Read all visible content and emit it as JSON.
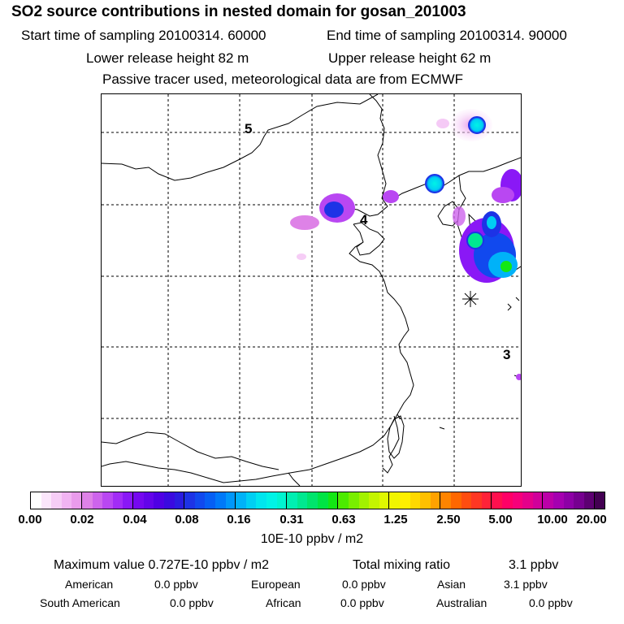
{
  "header": {
    "title": "SO2 source contributions in nested domain for gosan_201003",
    "start_time": "Start time of sampling 20100314. 60000",
    "end_time": "End time of sampling 20100314. 90000",
    "lower_height": "Lower release height   82 m",
    "upper_height": "Upper release height   62 m",
    "tracer_note": "Passive tracer used, meteorological data are from ECMWF"
  },
  "map": {
    "grid_labels": [
      "5",
      "4",
      "3"
    ],
    "receptor_marker": "asterisk"
  },
  "legend": {
    "ticks": [
      "0.00",
      "0.02",
      "0.04",
      "0.08",
      "0.16",
      "0.31",
      "0.63",
      "1.25",
      "2.50",
      "5.00",
      "10.00",
      "20.00"
    ],
    "units": "10E-10 ppbv / m2",
    "colors": [
      "#ffffff",
      "#fbe6fb",
      "#f6cdf6",
      "#f1b4f2",
      "#e99beb",
      "#de82e7",
      "#cd64ec",
      "#b947f2",
      "#a22cf6",
      "#8a18f6",
      "#7608f0",
      "#6304ea",
      "#4f00e4",
      "#3a0ae0",
      "#2a1ce0",
      "#1d33e6",
      "#1149ee",
      "#065ff4",
      "#0079f9",
      "#0097fa",
      "#00b2f8",
      "#00cff3",
      "#00e6ee",
      "#00f3e6",
      "#00f4d0",
      "#00efb2",
      "#00e890",
      "#00e46c",
      "#00e444",
      "#13e714",
      "#4ceb00",
      "#79ee00",
      "#a2f100",
      "#c4f400",
      "#e0f700",
      "#f1f500",
      "#fff000",
      "#ffd900",
      "#ffc000",
      "#ffa200",
      "#ff8400",
      "#ff6700",
      "#ff4d10",
      "#ff3723",
      "#ff2238",
      "#ff104e",
      "#ff0066",
      "#f6007a",
      "#e4008a",
      "#d0009a",
      "#bc00a8",
      "#a500b0",
      "#8d00a6",
      "#760090",
      "#5d0072",
      "#430052"
    ]
  },
  "stats": {
    "max_value_label": "Maximum value  0.727E-10 ppbv / m2",
    "total_label": "Total mixing ratio",
    "total_value": "3.1 ppbv",
    "american_label": "American",
    "american_value": "0.0 ppbv",
    "european_label": "European",
    "european_value": "0.0 ppbv",
    "asian_label": "Asian",
    "asian_value": "3.1 ppbv",
    "south_american_label": "South American",
    "south_american_value": "0.0 ppbv",
    "african_label": "African",
    "african_value": "0.0 ppbv",
    "australian_label": "Australian",
    "australian_value": "0.0 ppbv"
  }
}
